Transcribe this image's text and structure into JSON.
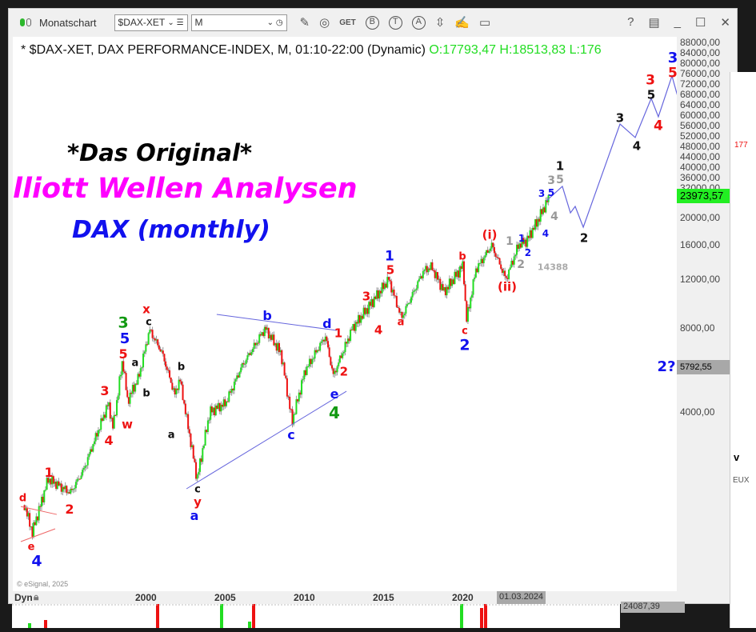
{
  "toolbar": {
    "title": "Monatschart",
    "symbol": "$DAX-XET",
    "interval": "M",
    "icons": [
      "pencil-icon",
      "study-icon",
      "get-icon",
      "buy-icon",
      "text-icon",
      "alert-icon",
      "arrows-icon",
      "edit-icon",
      "comment-icon"
    ],
    "get_label": "GET",
    "b_label": "B",
    "t_label": "T",
    "a_label": "A",
    "help": "?",
    "win_icons": [
      "layout-icon",
      "minimize-icon",
      "maximize-icon",
      "close-icon"
    ]
  },
  "header": {
    "desc": "* $DAX-XET, DAX PERFORMANCE-INDEX, M, 01:10-22:00 (Dynamic)",
    "ohl": "O:17793,47 H:18513,83 L:176"
  },
  "overlay": {
    "line1": "*Das Original*",
    "line2": "lliott Wellen Analysen",
    "line3": "DAX (monthly)"
  },
  "copyright": "© eSignal, 2025",
  "xaxis": {
    "dyn": "Dyn",
    "crosshair_date": "01.03.2024"
  },
  "right_panel": {
    "red_value": "177",
    "v": "v",
    "eux": "EUX"
  },
  "bottom_panel": {
    "value": "24087,39"
  },
  "colors": {
    "up": "#22dd22",
    "down": "#ee1111",
    "projection": "#6666dd",
    "last_price_bg": "#22ee22",
    "crosshair_bg": "#a8a8a8"
  },
  "chart_data": {
    "type": "candlestick",
    "scale": "log",
    "interval": "monthly",
    "yticks": [
      4000,
      8000,
      12000,
      16000,
      20000,
      28000,
      32000,
      36000,
      40000,
      44000,
      48000,
      52000,
      56000,
      60000,
      64000,
      68000,
      72000,
      76000,
      80000,
      84000,
      88000
    ],
    "ytick_labels": [
      "4000,00",
      "8000,00",
      "12000,00",
      "16000,00",
      "20000,00",
      "28000,00",
      "32000,00",
      "36000,00",
      "40000,00",
      "44000,00",
      "48000,00",
      "52000,00",
      "56000,00",
      "60000,00",
      "64000,00",
      "68000,00",
      "72000,00",
      "76000,00",
      "80000,00",
      "84000,00",
      "88000,00"
    ],
    "xticks": [
      2000,
      2005,
      2010,
      2015,
      2020
    ],
    "xtick_labels": [
      "2000",
      "2005",
      "2010",
      "2015",
      "2020"
    ],
    "last_price": "23973,57",
    "crosshair_price": "5792,55",
    "price_path": [
      [
        1992.3,
        1850
      ],
      [
        1992.8,
        1480
      ],
      [
        1993.8,
        2300
      ],
      [
        1995.2,
        2050
      ],
      [
        1996.0,
        2450
      ],
      [
        1997.6,
        4300
      ],
      [
        1997.9,
        3500
      ],
      [
        1998.5,
        6200
      ],
      [
        1998.8,
        4400
      ],
      [
        1999.5,
        5300
      ],
      [
        2000.2,
        7900
      ],
      [
        2001.0,
        6500
      ],
      [
        2001.8,
        4600
      ],
      [
        2002.1,
        5300
      ],
      [
        2003.2,
        2300
      ],
      [
        2004.0,
        4000
      ],
      [
        2005.0,
        4300
      ],
      [
        2006.0,
        5800
      ],
      [
        2007.5,
        8000
      ],
      [
        2008.5,
        6500
      ],
      [
        2009.2,
        3700
      ],
      [
        2010.0,
        5600
      ],
      [
        2011.3,
        7500
      ],
      [
        2011.8,
        5400
      ],
      [
        2013.0,
        8000
      ],
      [
        2014.0,
        9500
      ],
      [
        2015.3,
        12000
      ],
      [
        2016.1,
        8700
      ],
      [
        2017.5,
        12900
      ],
      [
        2018.0,
        13300
      ],
      [
        2018.8,
        10800
      ],
      [
        2020.0,
        13500
      ],
      [
        2020.2,
        8500
      ],
      [
        2020.8,
        13000
      ],
      [
        2021.8,
        15900
      ],
      [
        2022.7,
        12000
      ],
      [
        2023.5,
        16000
      ],
      [
        2024.0,
        16500
      ],
      [
        2024.7,
        19500
      ],
      [
        2025.4,
        23500
      ]
    ],
    "projection": [
      [
        2025.25,
        22970
      ],
      [
        2026.26,
        25900
      ],
      [
        2026.77,
        20800
      ],
      [
        2027.07,
        21940
      ],
      [
        2027.58,
        18470
      ],
      [
        2029.9,
        43400
      ],
      [
        2030.86,
        38800
      ],
      [
        2031.87,
        53650
      ],
      [
        2032.32,
        46070
      ],
      [
        2033.18,
        64600
      ],
      [
        2034.04,
        43100
      ]
    ],
    "trendlines": [
      {
        "color": "#6666dd",
        "points": [
          [
            2004.44,
            8970
          ],
          [
            2012.02,
            7860
          ]
        ]
      },
      {
        "color": "#6666dd",
        "points": [
          [
            2002.53,
            2118
          ],
          [
            2012.63,
            4750
          ]
        ]
      },
      {
        "color": "#ee6666",
        "points": [
          [
            1992.07,
            1830
          ],
          [
            1994.34,
            1713
          ]
        ]
      },
      {
        "color": "#ee6666",
        "points": [
          [
            1992.07,
            1368
          ],
          [
            1994.24,
            1521
          ]
        ]
      }
    ],
    "annotations": [
      {
        "text": "d",
        "color": "#ee1111",
        "x": 1992.2,
        "y": 1956,
        "size": 13
      },
      {
        "text": "e",
        "color": "#ee1111",
        "x": 1992.73,
        "y": 1306,
        "size": 13
      },
      {
        "text": "4",
        "color": "#1111ee",
        "x": 1993.08,
        "y": 1182,
        "size": 19
      },
      {
        "text": "1",
        "color": "#ee1111",
        "x": 1993.84,
        "y": 2418,
        "size": 16
      },
      {
        "text": "2",
        "color": "#ee1111",
        "x": 1995.15,
        "y": 1783,
        "size": 16
      },
      {
        "text": "3",
        "color": "#ee1111",
        "x": 1997.37,
        "y": 4751,
        "size": 16
      },
      {
        "text": "4",
        "color": "#ee1111",
        "x": 1997.63,
        "y": 3152,
        "size": 16
      },
      {
        "text": "w",
        "color": "#ee1111",
        "x": 1998.79,
        "y": 3598,
        "size": 15
      },
      {
        "text": "5",
        "color": "#ee1111",
        "x": 1998.54,
        "y": 6530,
        "size": 16
      },
      {
        "text": "5",
        "color": "#1111ee",
        "x": 1998.64,
        "y": 7310,
        "size": 18
      },
      {
        "text": "3",
        "color": "#119911",
        "x": 1998.54,
        "y": 8340,
        "size": 19
      },
      {
        "text": "a",
        "color": "#111111",
        "x": 1999.29,
        "y": 5990,
        "size": 13
      },
      {
        "text": "b",
        "color": "#111111",
        "x": 2000.0,
        "y": 4660,
        "size": 13
      },
      {
        "text": "x",
        "color": "#ee1111",
        "x": 2000.0,
        "y": 9340,
        "size": 15
      },
      {
        "text": "c",
        "color": "#111111",
        "x": 2000.15,
        "y": 8570,
        "size": 13
      },
      {
        "text": "b",
        "color": "#111111",
        "x": 2002.2,
        "y": 5800,
        "size": 13
      },
      {
        "text": "a",
        "color": "#111111",
        "x": 2001.57,
        "y": 3300,
        "size": 13
      },
      {
        "text": "c",
        "color": "#111111",
        "x": 2003.23,
        "y": 2105,
        "size": 13
      },
      {
        "text": "y",
        "color": "#ee1111",
        "x": 2003.23,
        "y": 1930,
        "size": 15
      },
      {
        "text": "a",
        "color": "#1111ee",
        "x": 2003.03,
        "y": 1737,
        "size": 16
      },
      {
        "text": "b",
        "color": "#1111ee",
        "x": 2007.63,
        "y": 8860,
        "size": 16
      },
      {
        "text": "c",
        "color": "#1111ee",
        "x": 2009.14,
        "y": 3300,
        "size": 16
      },
      {
        "text": "d",
        "color": "#1111ee",
        "x": 2011.41,
        "y": 8290,
        "size": 16
      },
      {
        "text": "1",
        "color": "#ee1111",
        "x": 2012.12,
        "y": 7660,
        "size": 15
      },
      {
        "text": "2",
        "color": "#ee1111",
        "x": 2012.47,
        "y": 5570,
        "size": 15
      },
      {
        "text": "e",
        "color": "#1111ee",
        "x": 2011.87,
        "y": 4630,
        "size": 16
      },
      {
        "text": "4",
        "color": "#119911",
        "x": 2011.87,
        "y": 3972,
        "size": 20
      },
      {
        "text": "3",
        "color": "#ee1111",
        "x": 2013.89,
        "y": 10380,
        "size": 15
      },
      {
        "text": "4",
        "color": "#ee1111",
        "x": 2014.65,
        "y": 7860,
        "size": 15
      },
      {
        "text": "1",
        "color": "#1111ee",
        "x": 2015.35,
        "y": 14460,
        "size": 17
      },
      {
        "text": "5",
        "color": "#ee1111",
        "x": 2015.4,
        "y": 12910,
        "size": 15
      },
      {
        "text": "a",
        "color": "#ee1111",
        "x": 2016.06,
        "y": 8400,
        "size": 13
      },
      {
        "text": "b",
        "color": "#ee1111",
        "x": 2019.95,
        "y": 14460,
        "size": 13
      },
      {
        "text": "c",
        "color": "#ee1111",
        "x": 2020.1,
        "y": 7810,
        "size": 13
      },
      {
        "text": "2",
        "color": "#1111ee",
        "x": 2020.1,
        "y": 6980,
        "size": 19
      },
      {
        "text": "(i)",
        "color": "#ee1111",
        "x": 2021.67,
        "y": 17290,
        "size": 15
      },
      {
        "text": "(ii)",
        "color": "#ee1111",
        "x": 2022.78,
        "y": 11240,
        "size": 15
      },
      {
        "text": "1",
        "color": "#999999",
        "x": 2022.93,
        "y": 16400,
        "size": 14
      },
      {
        "text": "2",
        "color": "#999999",
        "x": 2023.64,
        "y": 13710,
        "size": 14
      },
      {
        "text": "1",
        "color": "#1111ee",
        "x": 2023.69,
        "y": 16830,
        "size": 12
      },
      {
        "text": "2",
        "color": "#1111ee",
        "x": 2024.09,
        "y": 14940,
        "size": 12
      },
      {
        "text": "14388",
        "color": "#aaaaaa",
        "x": 2025.66,
        "y": 13260,
        "size": 11
      },
      {
        "text": "3",
        "color": "#1111ee",
        "x": 2024.95,
        "y": 24390,
        "size": 12
      },
      {
        "text": "5",
        "color": "#1111ee",
        "x": 2025.56,
        "y": 24880,
        "size": 12
      },
      {
        "text": "3",
        "color": "#999999",
        "x": 2025.56,
        "y": 27130,
        "size": 14
      },
      {
        "text": "5",
        "color": "#999999",
        "x": 2026.11,
        "y": 28040,
        "size": 14
      },
      {
        "text": "1",
        "color": "#111111",
        "x": 2026.11,
        "y": 30550,
        "size": 15
      },
      {
        "text": "4",
        "color": "#999999",
        "x": 2025.76,
        "y": 20130,
        "size": 14
      },
      {
        "text": "4",
        "color": "#1111ee",
        "x": 2025.2,
        "y": 17520,
        "size": 12
      },
      {
        "text": "2",
        "color": "#111111",
        "x": 2027.63,
        "y": 16830,
        "size": 15
      },
      {
        "text": "3",
        "color": "#111111",
        "x": 2029.9,
        "y": 45460,
        "size": 15
      },
      {
        "text": "4",
        "color": "#111111",
        "x": 2030.96,
        "y": 36060,
        "size": 15
      },
      {
        "text": "5",
        "color": "#111111",
        "x": 2031.87,
        "y": 56920,
        "size": 15
      },
      {
        "text": "3",
        "color": "#ee1111",
        "x": 2031.82,
        "y": 62000,
        "size": 17
      },
      {
        "text": "4",
        "color": "#ee1111",
        "x": 2032.32,
        "y": 42560,
        "size": 17
      },
      {
        "text": "5",
        "color": "#ee1111",
        "x": 2033.23,
        "y": 67200,
        "size": 17
      },
      {
        "text": "3",
        "color": "#1111ee",
        "x": 2033.23,
        "y": 74720,
        "size": 18
      },
      {
        "text": "2?",
        "color": "#1111ee",
        "x": 2032.83,
        "y": 5800,
        "size": 18
      }
    ]
  }
}
